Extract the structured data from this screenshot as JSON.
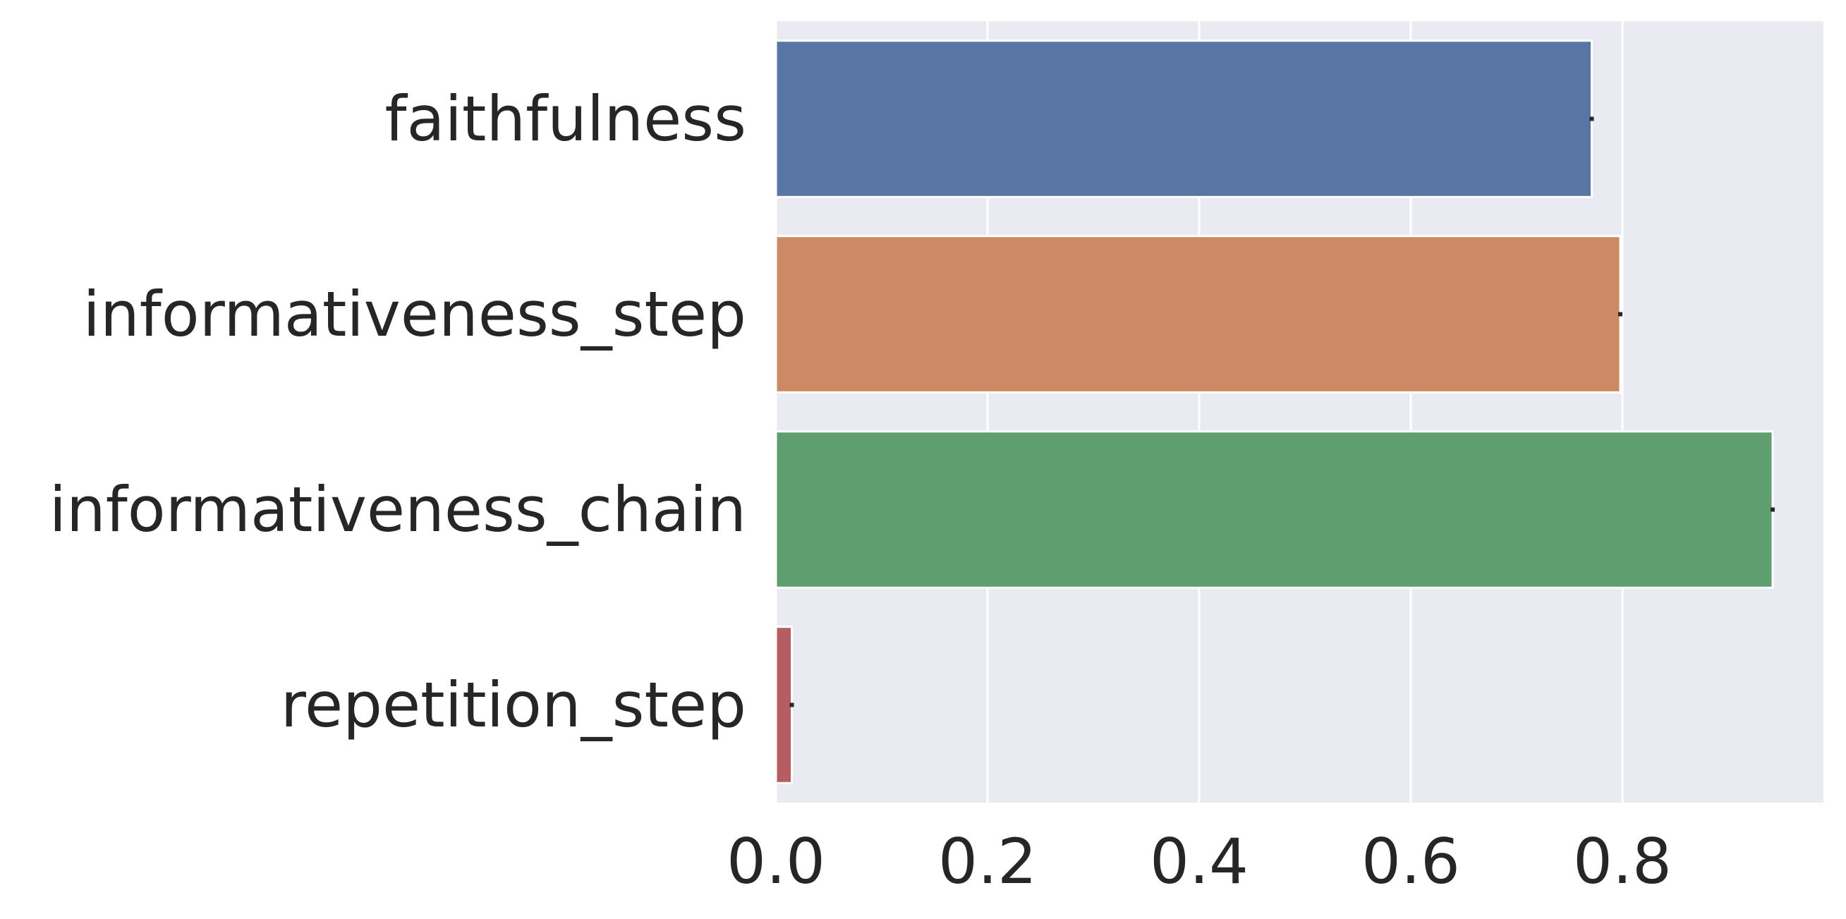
{
  "chart_data": {
    "type": "bar",
    "orientation": "horizontal",
    "title": "",
    "xlabel": "",
    "ylabel": "",
    "categories": [
      "faithfulness",
      "informativeness_step",
      "informativeness_chain",
      "repetition_step"
    ],
    "values": [
      0.771,
      0.798,
      0.942,
      0.015
    ],
    "error": [
      0.002,
      0.002,
      0.002,
      0.002
    ],
    "colors": [
      "#5875a4",
      "#cc8963",
      "#5f9e6e",
      "#b55d60"
    ],
    "xlim": [
      0.0,
      0.99
    ],
    "xticks": [
      0.0,
      0.2,
      0.4,
      0.6,
      0.8
    ],
    "xtick_labels": [
      "0.0",
      "0.2",
      "0.4",
      "0.6",
      "0.8"
    ],
    "grid": true,
    "background": "#eaeaf2",
    "gridline_color": "#ffffff",
    "legend": "none"
  }
}
